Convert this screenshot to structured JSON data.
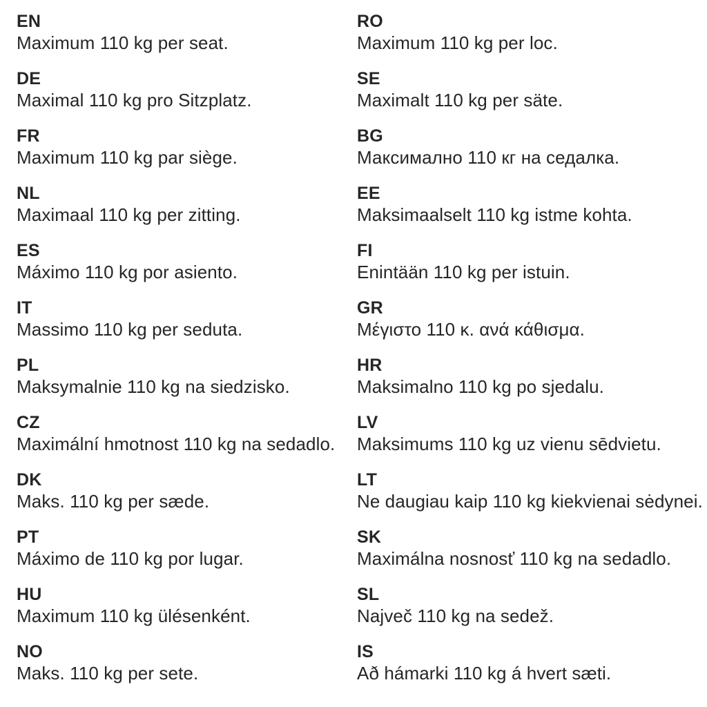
{
  "document": {
    "kind": "multilingual-weight-notice",
    "background_color": "#ffffff",
    "text_color": "#262626"
  },
  "columns": [
    {
      "entries": [
        {
          "code": "EN",
          "text": "Maximum 110 kg per seat."
        },
        {
          "code": "DE",
          "text": "Maximal 110 kg pro Sitzplatz."
        },
        {
          "code": "FR",
          "text": "Maximum 110 kg par siège."
        },
        {
          "code": "NL",
          "text": "Maximaal 110 kg per zitting."
        },
        {
          "code": "ES",
          "text": "Máximo 110 kg por asiento."
        },
        {
          "code": "IT",
          "text": "Massimo 110 kg per seduta."
        },
        {
          "code": "PL",
          "text": "Maksymalnie 110 kg na siedzisko."
        },
        {
          "code": "CZ",
          "text": "Maximální hmotnost 110 kg na sedadlo."
        },
        {
          "code": "DK",
          "text": "Maks. 110 kg per sæde."
        },
        {
          "code": "PT",
          "text": "Máximo de 110 kg por lugar."
        },
        {
          "code": "HU",
          "text": "Maximum 110 kg ülésenként."
        },
        {
          "code": "NO",
          "text": "Maks. 110 kg per sete."
        }
      ]
    },
    {
      "entries": [
        {
          "code": "RO",
          "text": "Maximum 110 kg per loc."
        },
        {
          "code": "SE",
          "text": "Maximalt 110 kg per säte."
        },
        {
          "code": "BG",
          "text": "Максимално 110 кг на седалка."
        },
        {
          "code": "EE",
          "text": "Maksimaalselt 110 kg istme kohta."
        },
        {
          "code": "FI",
          "text": "Enintään 110 kg per istuin."
        },
        {
          "code": "GR",
          "text": "Μέγιστο 110 κ. ανά κάθισμα."
        },
        {
          "code": "HR",
          "text": "Maksimalno 110 kg po sjedalu."
        },
        {
          "code": "LV",
          "text": "Maksimums 110 kg uz vienu sēdvietu."
        },
        {
          "code": "LT",
          "text": "Ne daugiau kaip 110 kg kiekvienai sėdynei."
        },
        {
          "code": "SK",
          "text": "Maximálna nosnosť 110 kg na sedadlo."
        },
        {
          "code": "SL",
          "text": "Največ 110 kg na sedež."
        },
        {
          "code": "IS",
          "text": "Að hámarki 110 kg á hvert sæti."
        }
      ]
    }
  ]
}
